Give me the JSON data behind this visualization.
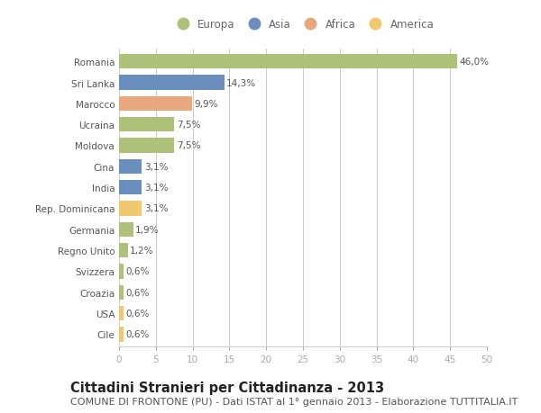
{
  "countries": [
    "Romania",
    "Sri Lanka",
    "Marocco",
    "Ucraina",
    "Moldova",
    "Cina",
    "India",
    "Rep. Dominicana",
    "Germania",
    "Regno Unito",
    "Svizzera",
    "Croazia",
    "USA",
    "Cile"
  ],
  "values": [
    46.0,
    14.3,
    9.9,
    7.5,
    7.5,
    3.1,
    3.1,
    3.1,
    1.9,
    1.2,
    0.6,
    0.6,
    0.6,
    0.6
  ],
  "labels": [
    "46,0%",
    "14,3%",
    "9,9%",
    "7,5%",
    "7,5%",
    "3,1%",
    "3,1%",
    "3,1%",
    "1,9%",
    "1,2%",
    "0,6%",
    "0,6%",
    "0,6%",
    "0,6%"
  ],
  "categories": [
    "Europa",
    "Asia",
    "Africa",
    "America"
  ],
  "continent": [
    "Europa",
    "Asia",
    "Africa",
    "Europa",
    "Europa",
    "Asia",
    "Asia",
    "America",
    "Europa",
    "Europa",
    "Europa",
    "Europa",
    "America",
    "America"
  ],
  "colors": {
    "Europa": "#adc178",
    "Asia": "#6a8fbf",
    "Africa": "#e8a87c",
    "America": "#f0c96e"
  },
  "title": "Cittadini Stranieri per Cittadinanza - 2013",
  "subtitle": "COMUNE DI FRONTONE (PU) - Dati ISTAT al 1° gennaio 2013 - Elaborazione TUTTITALIA.IT",
  "xlim": [
    0,
    50
  ],
  "xticks": [
    0,
    5,
    10,
    15,
    20,
    25,
    30,
    35,
    40,
    45,
    50
  ],
  "background_color": "#ffffff",
  "grid_color": "#cccccc",
  "bar_height": 0.7,
  "title_fontsize": 10.5,
  "subtitle_fontsize": 8,
  "label_fontsize": 7.5,
  "tick_fontsize": 7.5,
  "legend_fontsize": 8.5
}
